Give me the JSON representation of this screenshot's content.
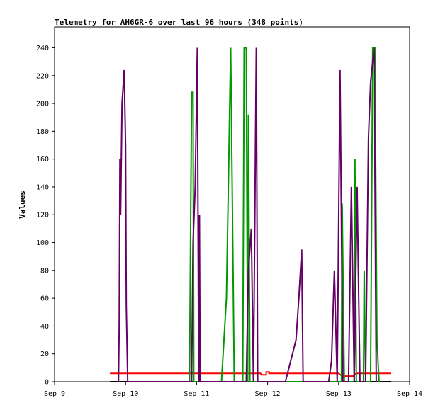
{
  "chart_data": {
    "type": "line",
    "title": "Telemetry for AH6GR-6 over last 96 hours (348 points)",
    "xlabel": "",
    "ylabel": "Values",
    "x_unit": "days since Sep 9 00:00",
    "xlim": [
      0,
      5
    ],
    "ylim": [
      0,
      255
    ],
    "x_ticks": [
      {
        "value": 0,
        "label": "Sep 9"
      },
      {
        "value": 1,
        "label": "Sep 10"
      },
      {
        "value": 2,
        "label": "Sep 11"
      },
      {
        "value": 3,
        "label": "Sep 12"
      },
      {
        "value": 4,
        "label": "Sep 13"
      },
      {
        "value": 5,
        "label": "Sep 14"
      }
    ],
    "y_ticks": [
      0,
      20,
      40,
      60,
      80,
      100,
      120,
      140,
      160,
      180,
      200,
      220,
      240
    ],
    "grid": false,
    "legend": "none",
    "series": [
      {
        "color": "#ff0000",
        "points": [
          [
            0.78,
            6
          ],
          [
            2.9,
            6
          ],
          [
            2.91,
            5
          ],
          [
            2.98,
            5
          ],
          [
            2.98,
            7
          ],
          [
            3.02,
            7
          ],
          [
            3.02,
            6
          ],
          [
            4.0,
            6
          ],
          [
            4.05,
            4
          ],
          [
            4.2,
            4
          ],
          [
            4.25,
            6
          ],
          [
            4.74,
            6
          ]
        ]
      },
      {
        "color": "#000000",
        "points": [
          [
            0.78,
            0
          ],
          [
            4.74,
            0
          ]
        ]
      },
      {
        "color": "#009900",
        "points": [
          [
            1.9,
            0
          ],
          [
            1.93,
            208
          ],
          [
            1.95,
            208
          ],
          [
            1.96,
            0
          ],
          [
            2.35,
            0
          ],
          [
            2.42,
            60
          ],
          [
            2.48,
            240
          ],
          [
            2.53,
            0
          ],
          [
            2.65,
            0
          ],
          [
            2.67,
            240
          ],
          [
            2.7,
            240
          ],
          [
            2.72,
            0
          ],
          [
            2.73,
            192
          ],
          [
            2.75,
            0
          ],
          [
            4.04,
            0
          ],
          [
            4.05,
            128
          ],
          [
            4.08,
            0
          ],
          [
            4.22,
            0
          ],
          [
            4.23,
            160
          ],
          [
            4.25,
            0
          ],
          [
            4.35,
            0
          ],
          [
            4.36,
            80
          ],
          [
            4.38,
            0
          ],
          [
            4.45,
            0
          ],
          [
            4.48,
            240
          ],
          [
            4.51,
            240
          ],
          [
            4.54,
            30
          ],
          [
            4.57,
            0
          ]
        ]
      },
      {
        "color": "#660066",
        "points": [
          [
            0.9,
            0
          ],
          [
            0.91,
            40
          ],
          [
            0.92,
            160
          ],
          [
            0.93,
            120
          ],
          [
            0.95,
            200
          ],
          [
            0.98,
            224
          ],
          [
            1.0,
            170
          ],
          [
            1.01,
            55
          ],
          [
            1.03,
            0
          ],
          [
            1.93,
            0
          ],
          [
            1.95,
            100
          ],
          [
            1.98,
            140
          ],
          [
            2.01,
            240
          ],
          [
            2.03,
            0
          ],
          [
            2.04,
            120
          ],
          [
            2.05,
            0
          ],
          [
            2.7,
            0
          ],
          [
            2.73,
            80
          ],
          [
            2.77,
            110
          ],
          [
            2.8,
            0
          ],
          [
            2.84,
            240
          ],
          [
            2.86,
            0
          ],
          [
            3.25,
            0
          ],
          [
            3.4,
            30
          ],
          [
            3.44,
            60
          ],
          [
            3.48,
            95
          ],
          [
            3.5,
            0
          ],
          [
            3.86,
            0
          ],
          [
            3.9,
            15
          ],
          [
            3.94,
            80
          ],
          [
            3.98,
            0
          ],
          [
            4.02,
            224
          ],
          [
            4.06,
            0
          ],
          [
            4.14,
            0
          ],
          [
            4.18,
            140
          ],
          [
            4.22,
            0
          ],
          [
            4.26,
            140
          ],
          [
            4.3,
            0
          ],
          [
            4.38,
            0
          ],
          [
            4.42,
            175
          ],
          [
            4.45,
            215
          ],
          [
            4.5,
            240
          ],
          [
            4.53,
            0
          ]
        ]
      }
    ]
  }
}
